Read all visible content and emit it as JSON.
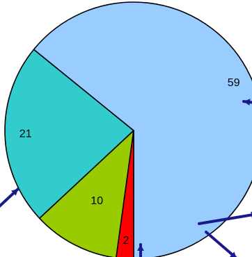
{
  "chart_data": {
    "type": "pie",
    "title": "",
    "slices": [
      {
        "value": 59,
        "label": "59",
        "color": "#99ccff"
      },
      {
        "value": 21,
        "label": "21",
        "color": "#33cccc"
      },
      {
        "value": 10,
        "label": "10",
        "color": "#99cc00"
      },
      {
        "value": 2,
        "label": "2",
        "color": "#ff0000"
      }
    ],
    "start_angle_deg": 0,
    "direction": "counterclockwise-from-bottom",
    "legend": "none",
    "leader_color": "#1a1a8c"
  }
}
